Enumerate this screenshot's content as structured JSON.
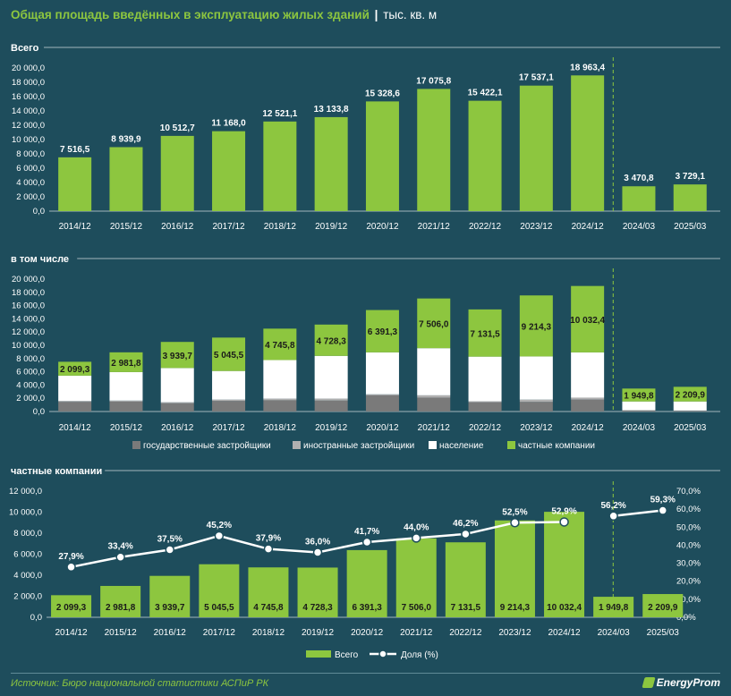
{
  "header": {
    "title": "Общая площадь введённых в эксплуатацию жилых зданий",
    "separator": "|",
    "unit": "тыс. кв. м"
  },
  "footer": {
    "source": "Источник: Бюро национальной статистики АСПиР РК",
    "logo": "EnergyProm"
  },
  "colors": {
    "background": "#1e4d5c",
    "green": "#8dc63f",
    "dark_gray": "#7a7a7a",
    "light_gray": "#b0b0b0",
    "white": "#ffffff"
  },
  "chart_data": [
    {
      "type": "bar",
      "title": "Всего",
      "categories": [
        "2014/12",
        "2015/12",
        "2016/12",
        "2017/12",
        "2018/12",
        "2019/12",
        "2020/12",
        "2021/12",
        "2022/12",
        "2023/12",
        "2024/12",
        "2024/03",
        "2025/03"
      ],
      "values": [
        7516.5,
        8939.9,
        10512.7,
        11168.0,
        12521.1,
        13133.8,
        15328.6,
        17075.8,
        15422.1,
        17537.1,
        18963.4,
        3470.8,
        3729.1
      ],
      "labels": [
        "7 516,5",
        "8 939,9",
        "10 512,7",
        "11 168,0",
        "12 521,1",
        "13 133,8",
        "15 328,6",
        "17 075,8",
        "15 422,1",
        "17 537,1",
        "18 963,4",
        "3 470,8",
        "3 729,1"
      ],
      "yticks": [
        "0,0",
        "2 000,0",
        "4 000,0",
        "6 000,0",
        "8 000,0",
        "10 000,0",
        "12 000,0",
        "14 000,0",
        "16 000,0",
        "18 000,0",
        "20 000,0"
      ],
      "ylim": [
        0,
        20000
      ],
      "divider_after_index": 10
    },
    {
      "type": "bar",
      "stacked": true,
      "title": "в том числе",
      "categories": [
        "2014/12",
        "2015/12",
        "2016/12",
        "2017/12",
        "2018/12",
        "2019/12",
        "2020/12",
        "2021/12",
        "2022/12",
        "2023/12",
        "2024/12",
        "2024/03",
        "2025/03"
      ],
      "series": [
        {
          "name": "государственные застройщики",
          "color": "#7a7a7a",
          "values": [
            1450,
            1500,
            1250,
            1600,
            1700,
            1650,
            2450,
            2100,
            1400,
            1450,
            1800,
            150,
            100
          ]
        },
        {
          "name": "иностранные застройщики",
          "color": "#b0b0b0",
          "values": [
            150,
            150,
            150,
            200,
            250,
            300,
            150,
            350,
            150,
            350,
            300,
            50,
            50
          ]
        },
        {
          "name": "население",
          "color": "#ffffff",
          "values": [
            3817.1,
            4308.0,
            5173.0,
            4322.5,
            5825.3,
            6455.5,
            6337.3,
            7119.8,
            6740.6,
            6522.8,
            6831.0,
            1320.0,
            1369.2
          ]
        },
        {
          "name": "частные компании",
          "color": "#8dc63f",
          "values": [
            2099.3,
            2981.8,
            3939.7,
            5045.5,
            4745.8,
            4728.3,
            6391.3,
            7506.0,
            7131.5,
            9214.3,
            10032.4,
            1949.8,
            2209.9
          ]
        }
      ],
      "labels": [
        "2 099,3",
        "2 981,8",
        "3 939,7",
        "5 045,5",
        "4 745,8",
        "4 728,3",
        "6 391,3",
        "7 506,0",
        "7 131,5",
        "9 214,3",
        "10 032,4",
        "1 949,8",
        "2 209,9"
      ],
      "yticks": [
        "0,0",
        "2 000,0",
        "4 000,0",
        "6 000,0",
        "8 000,0",
        "10 000,0",
        "12 000,0",
        "14 000,0",
        "16 000,0",
        "18 000,0",
        "20 000,0"
      ],
      "ylim": [
        0,
        20000
      ],
      "legend": "bottom",
      "divider_after_index": 10
    },
    {
      "type": "bar",
      "title": "частные компании",
      "categories": [
        "2014/12",
        "2015/12",
        "2016/12",
        "2017/12",
        "2018/12",
        "2019/12",
        "2020/12",
        "2021/12",
        "2022/12",
        "2023/12",
        "2024/12",
        "2024/03",
        "2025/03"
      ],
      "series": [
        {
          "name": "Всего",
          "type": "bar",
          "values": [
            2099.3,
            2981.8,
            3939.7,
            5045.5,
            4745.8,
            4728.3,
            6391.3,
            7506.0,
            7131.5,
            9214.3,
            10032.4,
            1949.8,
            2209.9
          ]
        },
        {
          "name": "Доля (%)",
          "type": "line",
          "axis": "right",
          "values": [
            27.9,
            33.4,
            37.5,
            45.2,
            37.9,
            36.0,
            41.7,
            44.0,
            46.2,
            52.5,
            52.9,
            56.2,
            59.3
          ]
        }
      ],
      "bar_labels": [
        "2 099,3",
        "2 981,8",
        "3 939,7",
        "5 045,5",
        "4 745,8",
        "4 728,3",
        "6 391,3",
        "7 506,0",
        "7 131,5",
        "9 214,3",
        "10 032,4",
        "1 949,8",
        "2 209,9"
      ],
      "line_labels": [
        "27,9%",
        "33,4%",
        "37,5%",
        "45,2%",
        "37,9%",
        "36,0%",
        "41,7%",
        "44,0%",
        "46,2%",
        "52,5%",
        "52,9%",
        "56,2%",
        "59,3%"
      ],
      "yticks": [
        "0,0",
        "2 000,0",
        "4 000,0",
        "6 000,0",
        "8 000,0",
        "10 000,0",
        "12 000,0"
      ],
      "ylim": [
        0,
        12000
      ],
      "y2ticks": [
        "0,0%",
        "10,0%",
        "20,0%",
        "30,0%",
        "40,0%",
        "50,0%",
        "60,0%",
        "70,0%"
      ],
      "y2lim": [
        0,
        70
      ],
      "legend": "bottom",
      "divider_after_index": 10
    }
  ]
}
